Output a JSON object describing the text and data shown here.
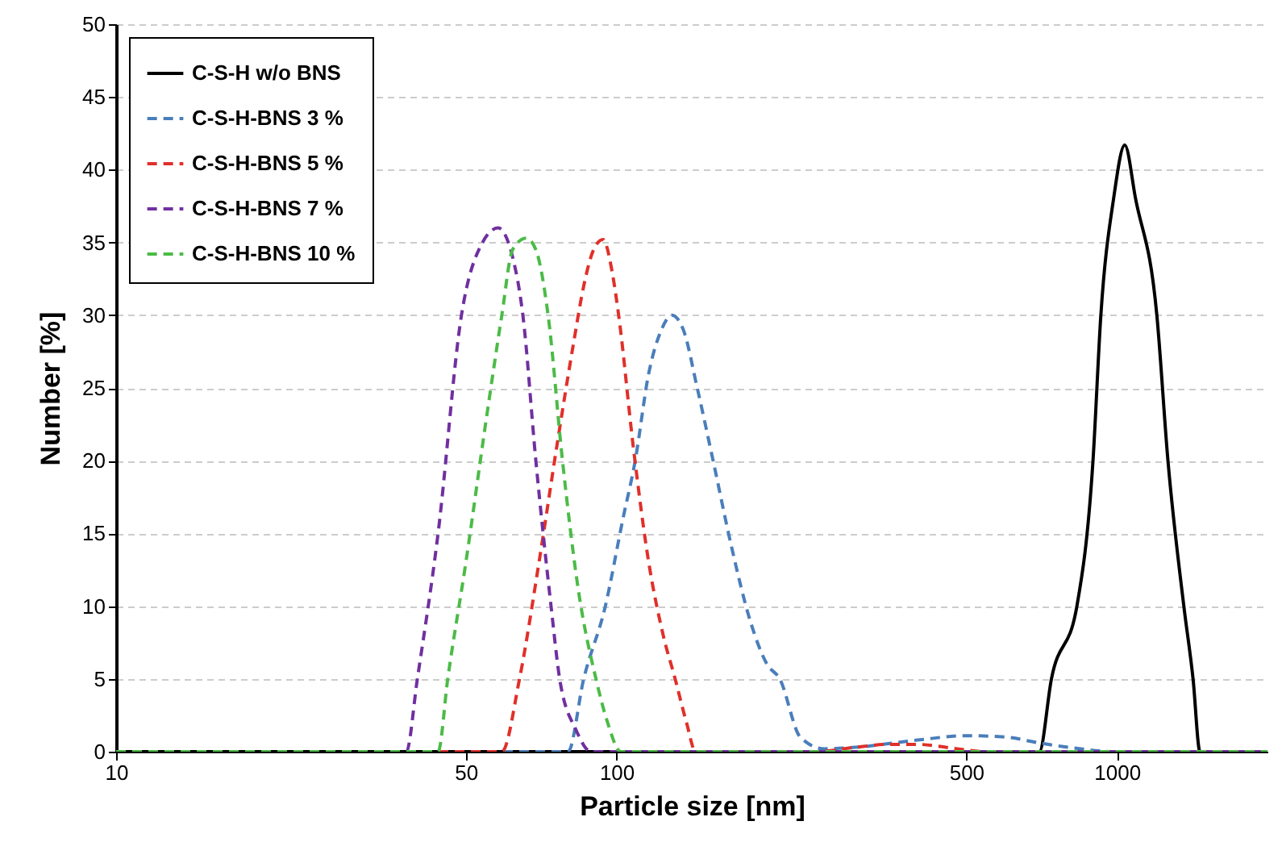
{
  "chart_data": {
    "type": "line",
    "xlabel": "Particle size [nm]",
    "ylabel": "Number [%]",
    "log": "x",
    "xlim": [
      10,
      2000
    ],
    "xticks": [
      10,
      50,
      100,
      500,
      1000
    ],
    "ylim": [
      0,
      50
    ],
    "yticks": [
      0,
      5,
      10,
      15,
      20,
      25,
      30,
      35,
      40,
      45,
      50
    ],
    "grid": "y",
    "legend": "top left",
    "series": [
      {
        "name": "C-S-H w/o BNS",
        "color": "#000000",
        "line_style": "solid",
        "x": [
          10,
          700,
          740,
          832,
          896,
          929,
          985,
          1037,
          1090,
          1202,
          1265,
          1361,
          1420,
          1466,
          2000
        ],
        "values": [
          0,
          0,
          5,
          10,
          20,
          30,
          38,
          41.7,
          38,
          30,
          20,
          10,
          5,
          0,
          0
        ]
      },
      {
        "name": "C-S-H-BNS  3 %",
        "color": "#4a7ebb",
        "line_style": "dashed",
        "x": [
          10,
          80,
          86,
          95,
          103,
          109,
          116,
          123,
          129,
          136,
          145,
          156,
          170,
          185,
          200,
          212,
          233,
          260,
          300,
          400,
          500,
          600,
          700,
          800,
          1000,
          2000
        ],
        "values": [
          0,
          0,
          5,
          10,
          16,
          20,
          26,
          29,
          30,
          29,
          25,
          20,
          14,
          9,
          6,
          5,
          1,
          0.2,
          0.3,
          0.8,
          1.1,
          1,
          0.6,
          0.3,
          0,
          0
        ]
      },
      {
        "name": "C-S-H-BNS  5 %",
        "color": "#e0302a",
        "line_style": "dashed",
        "x": [
          10,
          59,
          64,
          70,
          76,
          82,
          86,
          90,
          94,
          98,
          101,
          108,
          116,
          124,
          131,
          138,
          144,
          250,
          300,
          350,
          400,
          480,
          550,
          2000
        ],
        "values": [
          0,
          0,
          5,
          13,
          21,
          28,
          32,
          34.5,
          35.2,
          33,
          30,
          21,
          13,
          8,
          5,
          2,
          0,
          0,
          0.3,
          0.5,
          0.5,
          0.2,
          0,
          0
        ]
      },
      {
        "name": "C-S-H-BNS  7 %",
        "color": "#7030a0",
        "line_style": "dashed",
        "x": [
          10,
          38,
          40,
          44,
          49,
          54,
          58,
          62,
          65,
          69,
          74,
          77,
          83,
          89,
          2000
        ],
        "values": [
          0,
          0,
          5,
          15,
          30,
          35,
          36,
          34,
          30,
          20,
          10,
          5,
          1.5,
          0,
          0
        ]
      },
      {
        "name": "C-S-H-BNS 10 %",
        "color": "#4cbb47",
        "line_style": "dashed",
        "x": [
          10,
          44,
          46,
          50,
          55,
          59,
          62,
          66,
          69,
          73,
          78,
          84,
          91,
          96,
          102,
          2000
        ],
        "values": [
          0,
          0,
          5,
          13,
          23,
          30,
          34.5,
          35.3,
          34.5,
          30,
          20,
          11,
          5,
          2,
          0,
          0
        ]
      }
    ]
  }
}
